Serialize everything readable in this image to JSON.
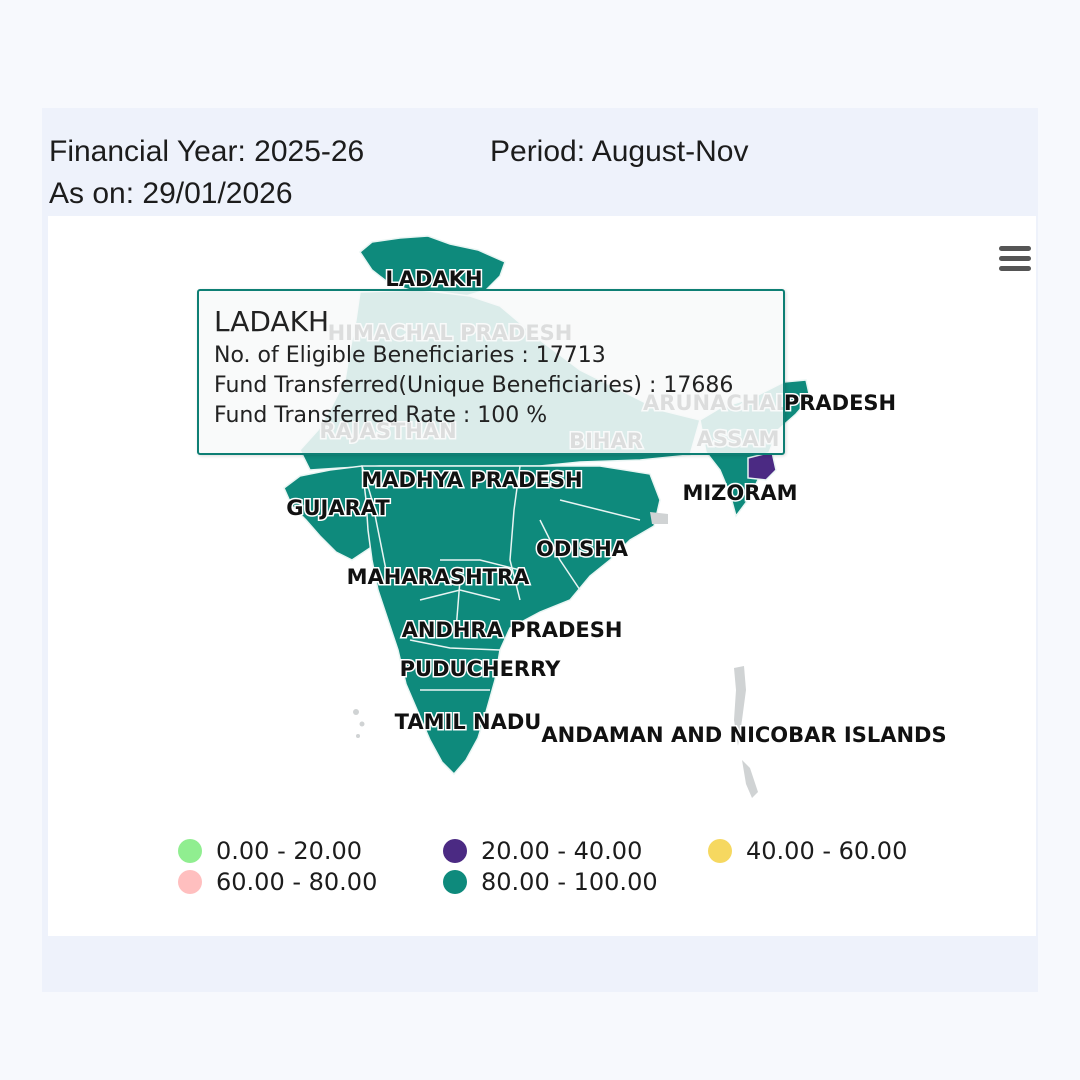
{
  "header": {
    "financial_year": "Financial Year: 2025-26",
    "period": "Period: August-Nov",
    "as_on": "As on: 29/01/2026"
  },
  "icons": {
    "menu": "hamburger-menu-icon"
  },
  "tooltip": {
    "title": "LADAKH",
    "lines": [
      "No. of Eligible Beneficiaries : 17713",
      "Fund Transferred(Unique Beneficiaries) : 17686",
      "Fund Transferred Rate : 100 %"
    ]
  },
  "map_labels": [
    "LADAKH",
    "HIMACHAL PRADESH",
    "RAJASTHAN",
    "BIHAR",
    "ARUNACHAL",
    "PRADESH",
    "ASSAM",
    "MIZORAM",
    "MADHYA PRADESH",
    "GUJARAT",
    "ODISHA",
    "MAHARASHTRA",
    "ANDHRA PRADESH",
    "PUDUCHERRY",
    "TAMIL NADU",
    "ANDAMAN AND NICOBAR ISLANDS"
  ],
  "legend": [
    {
      "label": "0.00 - 20.00",
      "color": "#90ee90"
    },
    {
      "label": "20.00 - 40.00",
      "color": "#4b2a83"
    },
    {
      "label": "40.00 - 60.00",
      "color": "#f6d860"
    },
    {
      "label": "60.00 - 80.00",
      "color": "#ffbfbf"
    },
    {
      "label": "80.00 - 100.00",
      "color": "#0e8a7c"
    }
  ],
  "colors": {
    "state_fill": "#0e8a7c",
    "highlight_fill": "#4b2a83",
    "no_data_fill": "#d0d3d4",
    "border": "#e9f5f3"
  }
}
